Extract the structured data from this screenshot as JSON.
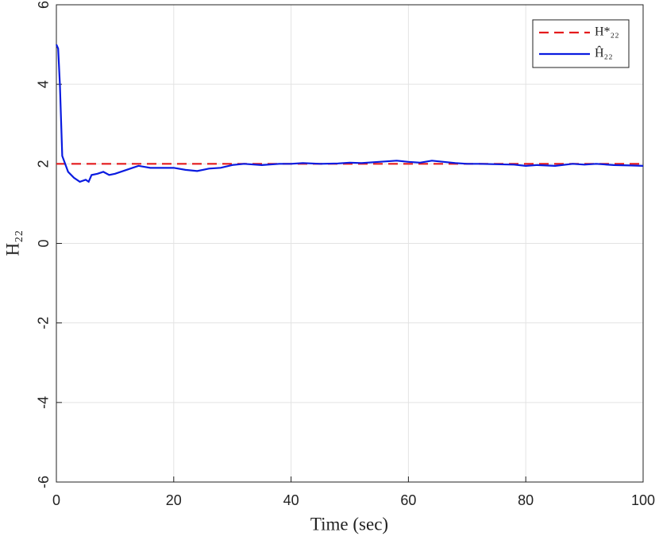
{
  "chart_data": {
    "type": "line",
    "xlabel": "Time (sec)",
    "ylabel": "H₂₂",
    "series": [
      {
        "name": "H*₂₂",
        "color": "#e41a1c",
        "line_style": "dashed",
        "x": [
          0,
          100
        ],
        "values": [
          2,
          2
        ]
      },
      {
        "name": "Ĥ₂₂",
        "color": "#0a1be0",
        "line_style": "solid",
        "x": [
          0,
          0.3,
          0.6,
          1,
          1.5,
          2,
          3,
          4,
          5,
          5.5,
          6,
          7,
          8,
          9,
          10,
          12,
          13,
          14,
          16,
          18,
          20,
          22,
          24,
          26,
          28,
          30,
          32,
          35,
          38,
          40,
          42,
          45,
          48,
          50,
          52,
          55,
          58,
          60,
          62,
          64,
          66,
          68,
          70,
          72,
          75,
          78,
          80,
          82,
          85,
          88,
          90,
          92,
          95,
          98,
          100
        ],
        "values": [
          5.0,
          4.9,
          4.0,
          2.2,
          2.0,
          1.8,
          1.65,
          1.55,
          1.6,
          1.55,
          1.72,
          1.75,
          1.8,
          1.72,
          1.75,
          1.85,
          1.9,
          1.95,
          1.9,
          1.9,
          1.9,
          1.85,
          1.82,
          1.88,
          1.9,
          1.97,
          2.0,
          1.97,
          2.0,
          2.0,
          2.02,
          2.0,
          2.01,
          2.03,
          2.02,
          2.05,
          2.08,
          2.05,
          2.03,
          2.08,
          2.05,
          2.02,
          2.0,
          2.0,
          1.99,
          1.98,
          1.95,
          1.97,
          1.95,
          2.0,
          1.98,
          2.0,
          1.97,
          1.96,
          1.95
        ]
      }
    ],
    "xlim": [
      0,
      100
    ],
    "xticks": [
      0,
      20,
      40,
      60,
      80,
      100
    ],
    "ylim": [
      -6,
      6
    ],
    "yticks": [
      -6,
      -4,
      -2,
      0,
      2,
      4,
      6
    ],
    "grid": true,
    "legend": "upper right"
  }
}
